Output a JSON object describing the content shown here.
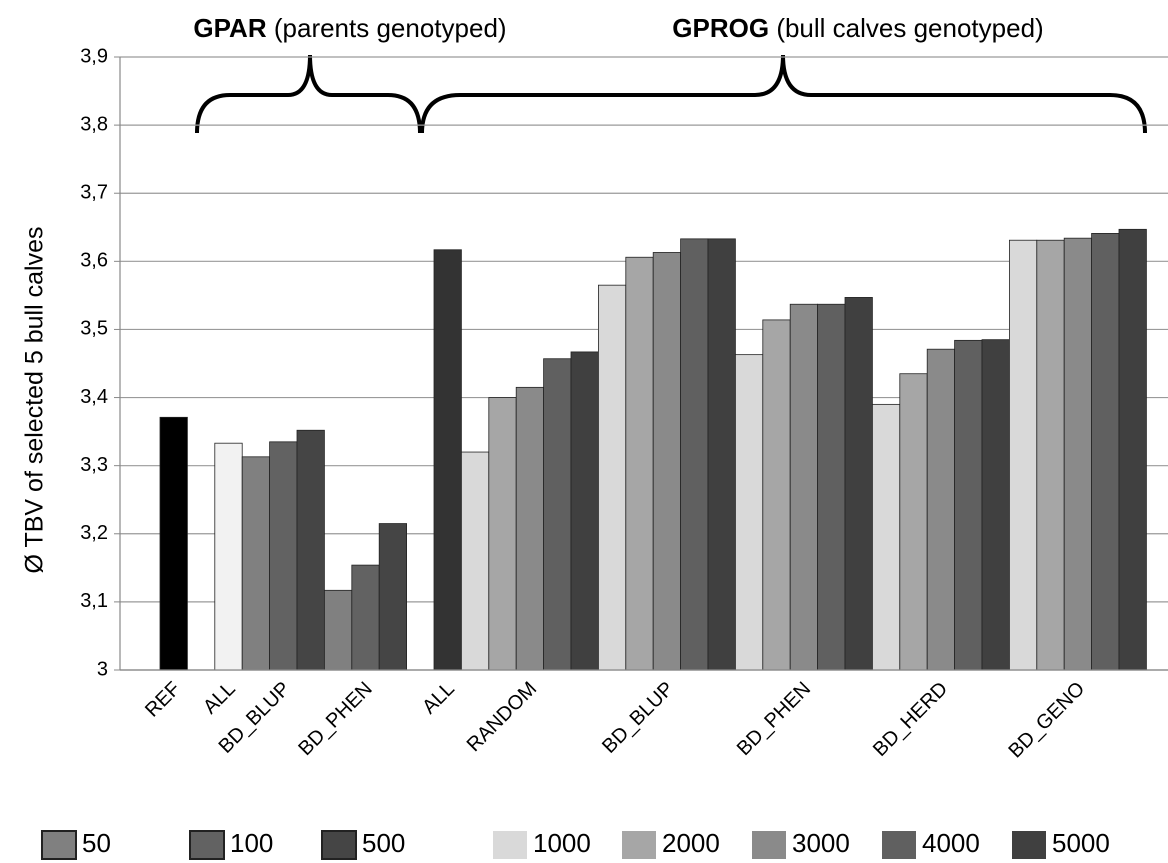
{
  "chart_data": {
    "type": "bar",
    "ylabel": "Ø TBV of selected 5 bull calves",
    "groups": [
      {
        "name": "GPAR",
        "label": "(parents genotyped)"
      },
      {
        "name": "GPROG",
        "label": "(bull calves genotyped)"
      }
    ],
    "categories": [
      "REF",
      "ALL",
      "BD_BLUP",
      "BD_PHEN",
      "ALL",
      "RANDOM",
      "BD_BLUP",
      "BD_PHEN",
      "BD_HERD",
      "BD_GENO"
    ],
    "series": [
      {
        "color": "#000000",
        "values": [
          3.371,
          null,
          null,
          null,
          null,
          null,
          null,
          null,
          null,
          null
        ]
      },
      {
        "color": "#f2f2f2",
        "values": [
          null,
          3.333,
          null,
          null,
          null,
          null,
          null,
          null,
          null,
          null
        ]
      },
      {
        "color": "#333333",
        "values": [
          null,
          null,
          null,
          null,
          3.617,
          null,
          null,
          null,
          null,
          null
        ]
      },
      {
        "name": "50",
        "color": "#808080",
        "values": [
          null,
          null,
          3.313,
          3.117,
          null,
          null,
          null,
          null,
          null,
          null
        ]
      },
      {
        "name": "100",
        "color": "#626262",
        "values": [
          null,
          null,
          3.335,
          3.154,
          null,
          null,
          null,
          null,
          null,
          null
        ]
      },
      {
        "name": "500",
        "color": "#454545",
        "values": [
          null,
          null,
          3.352,
          3.215,
          null,
          null,
          null,
          null,
          null,
          null
        ]
      },
      {
        "name": "1000",
        "color": "#d9d9d9",
        "values": [
          null,
          null,
          null,
          null,
          null,
          3.32,
          3.565,
          3.463,
          3.39,
          3.631
        ]
      },
      {
        "name": "2000",
        "color": "#a6a6a6",
        "values": [
          null,
          null,
          null,
          null,
          null,
          3.4,
          3.606,
          3.514,
          3.435,
          3.631
        ]
      },
      {
        "name": "3000",
        "color": "#8a8a8a",
        "values": [
          null,
          null,
          null,
          null,
          null,
          3.415,
          3.613,
          3.537,
          3.471,
          3.634
        ]
      },
      {
        "name": "4000",
        "color": "#606060",
        "values": [
          null,
          null,
          null,
          null,
          null,
          3.457,
          3.633,
          3.537,
          3.484,
          3.641
        ]
      },
      {
        "name": "5000",
        "color": "#404040",
        "values": [
          null,
          null,
          null,
          null,
          null,
          3.467,
          3.633,
          3.547,
          3.485,
          3.647
        ]
      }
    ],
    "ylim": [
      3,
      3.9
    ],
    "yticks": [
      3,
      {
        "value": 3.1,
        "label": "3,1"
      },
      {
        "value": 3.2,
        "label": "3,2"
      },
      {
        "value": 3.3,
        "label": "3,3"
      },
      {
        "value": 3.4,
        "label": "3,4"
      },
      {
        "value": 3.5,
        "label": "3,5"
      },
      {
        "value": 3.6,
        "label": "3,6"
      },
      {
        "value": 3.7,
        "label": "3,7"
      },
      {
        "value": 3.8,
        "label": "3,8"
      },
      {
        "value": 3.9,
        "label": "3,9"
      }
    ],
    "grid": true
  }
}
